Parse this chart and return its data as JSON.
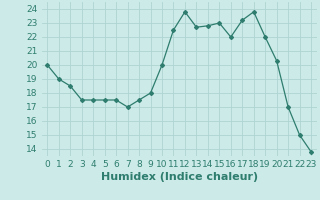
{
  "x": [
    0,
    1,
    2,
    3,
    4,
    5,
    6,
    7,
    8,
    9,
    10,
    11,
    12,
    13,
    14,
    15,
    16,
    17,
    18,
    19,
    20,
    21,
    22,
    23
  ],
  "y": [
    20.0,
    19.0,
    18.5,
    17.5,
    17.5,
    17.5,
    17.5,
    17.0,
    17.5,
    18.0,
    20.0,
    22.5,
    23.8,
    22.7,
    22.8,
    23.0,
    22.0,
    23.2,
    23.8,
    22.0,
    20.3,
    17.0,
    15.0,
    13.8
  ],
  "line_color": "#2e7d6e",
  "marker": "D",
  "marker_size": 2.0,
  "bg_color": "#cceae8",
  "grid_color": "#aed4d1",
  "xlabel": "Humidex (Indice chaleur)",
  "xlim": [
    -0.5,
    23.5
  ],
  "ylim": [
    13.5,
    24.5
  ],
  "yticks": [
    14,
    15,
    16,
    17,
    18,
    19,
    20,
    21,
    22,
    23,
    24
  ],
  "xticks": [
    0,
    1,
    2,
    3,
    4,
    5,
    6,
    7,
    8,
    9,
    10,
    11,
    12,
    13,
    14,
    15,
    16,
    17,
    18,
    19,
    20,
    21,
    22,
    23
  ],
  "tick_labelsize": 6.5,
  "xlabel_fontsize": 8,
  "tick_color": "#2e7d6e"
}
